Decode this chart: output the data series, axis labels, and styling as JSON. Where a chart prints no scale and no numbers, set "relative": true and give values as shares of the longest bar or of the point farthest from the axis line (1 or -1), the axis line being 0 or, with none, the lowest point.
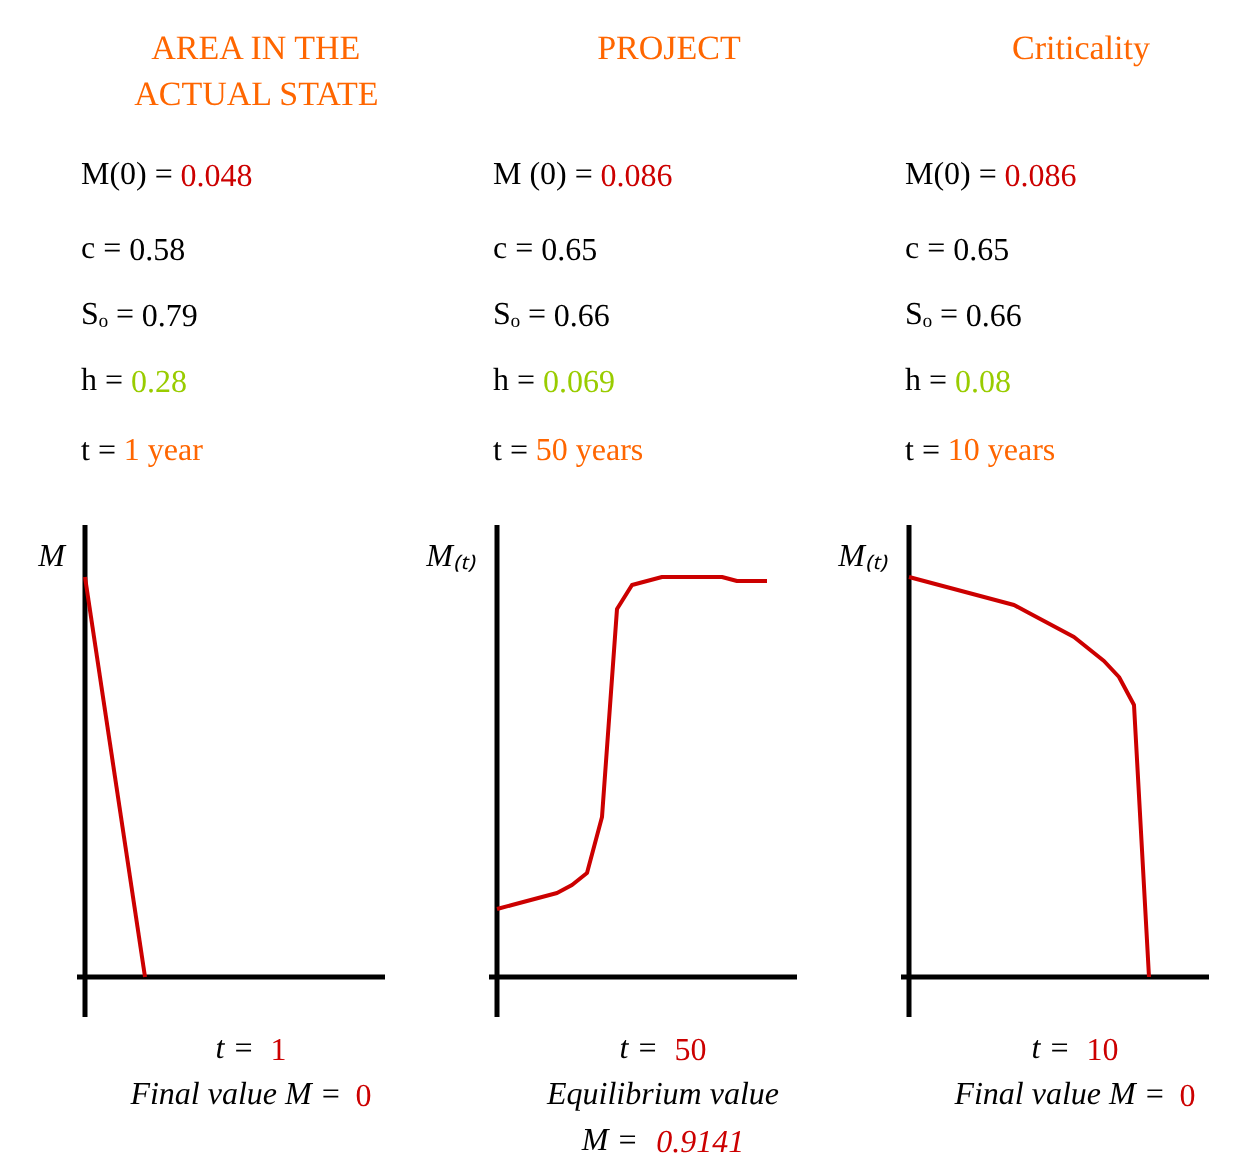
{
  "chart_data": [
    {
      "type": "line",
      "title": "AREA IN THE\nACTUAL STATE",
      "ylabel": "M",
      "relative": true,
      "categories": [
        null,
        null,
        null,
        null,
        null,
        null,
        null,
        null,
        null,
        null,
        null,
        null,
        null,
        null,
        null,
        null,
        null,
        null,
        null,
        null,
        null
      ],
      "series": [
        {
          "color": "#cc0000",
          "values": [
            1,
            0.75,
            0.5,
            0.25,
            0,
            null,
            null,
            null,
            null,
            null,
            null,
            null,
            null,
            null,
            null,
            null,
            null,
            null,
            null,
            null,
            null
          ]
        }
      ],
      "annotations": [
        "M(0) = 0.048",
        "c = 0.58",
        "Sₒ = 0.79",
        "h = 0.28",
        "t = 1 year",
        "t = 1",
        "Final value M = 0"
      ]
    },
    {
      "type": "line",
      "title": "PROJECT",
      "ylabel": "M₍ₜ₎",
      "relative": true,
      "categories": [
        null,
        null,
        null,
        null,
        null,
        null,
        null,
        null,
        null,
        null,
        null,
        null,
        null,
        null,
        null,
        null,
        null,
        null,
        null,
        null,
        null
      ],
      "series": [
        {
          "color": "#cc0000",
          "values": [
            0.17,
            0.18,
            0.19,
            0.2,
            0.21,
            0.23,
            0.26,
            0.4,
            0.92,
            0.98,
            0.99,
            1,
            1,
            1,
            1,
            1,
            0.99,
            0.99,
            0.99,
            null,
            null
          ]
        }
      ],
      "annotations": [
        "M (0) = 0.086",
        "c = 0.65",
        "Sₒ = 0.66",
        "h = 0.069",
        "t = 50 years",
        "t = 50",
        "Equilibrium value",
        "M = 0.9141"
      ]
    },
    {
      "type": "line",
      "title": "Criticality",
      "ylabel": "M₍ₜ₎",
      "relative": true,
      "categories": [
        null,
        null,
        null,
        null,
        null,
        null,
        null,
        null,
        null,
        null,
        null,
        null,
        null,
        null,
        null,
        null,
        null,
        null,
        null,
        null,
        null
      ],
      "series": [
        {
          "color": "#cc0000",
          "values": [
            1,
            0.99,
            0.98,
            0.97,
            0.96,
            0.95,
            0.94,
            0.93,
            0.91,
            0.89,
            0.87,
            0.85,
            0.82,
            0.79,
            0.75,
            0.68,
            0,
            null,
            null,
            null,
            null
          ]
        }
      ],
      "annotations": [
        "M(0) = 0.086",
        "c = 0.65",
        "Sₒ = 0.66",
        "h = 0.08",
        "t = 10 years",
        "t = 10",
        "Final value M = 0"
      ]
    }
  ]
}
